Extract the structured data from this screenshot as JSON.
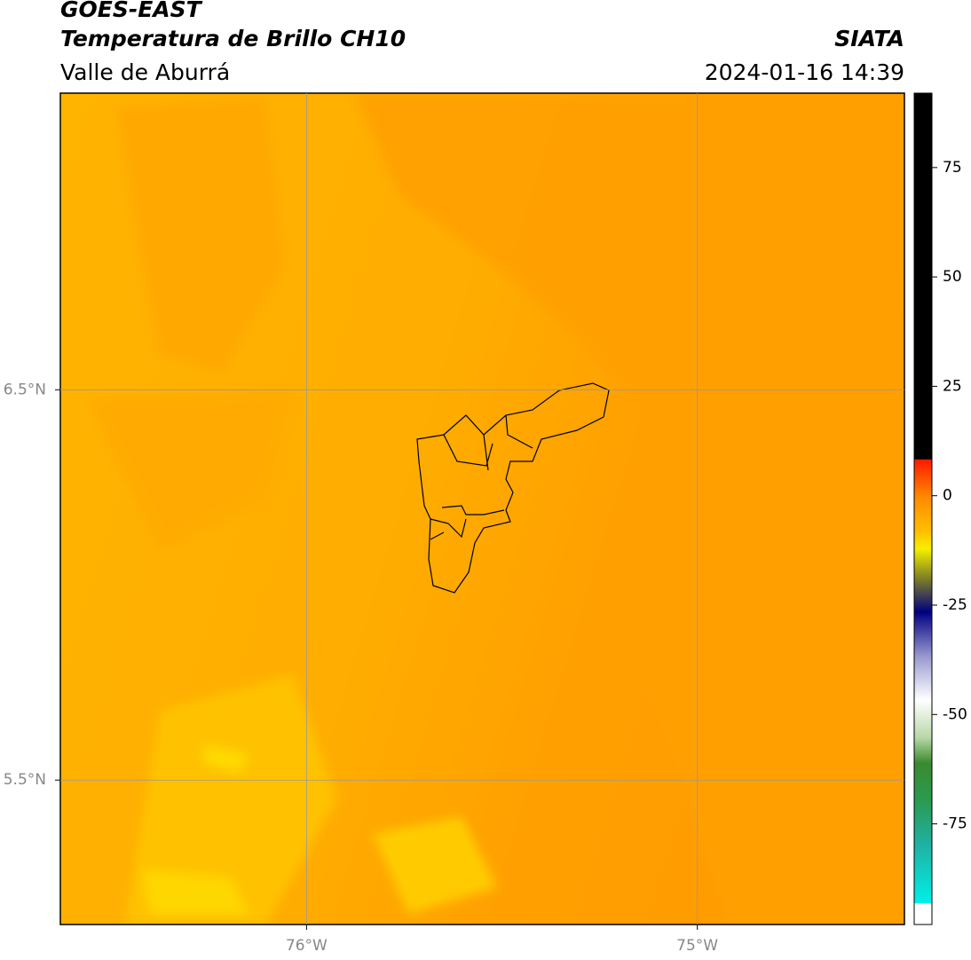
{
  "header": {
    "title": "GOES-EAST",
    "subtitle": "Temperatura de Brillo CH10",
    "region": "Valle de Aburrá",
    "source": "SIATA",
    "timestamp": "2024-01-16 14:39"
  },
  "map": {
    "xlim": [
      -76.63,
      -74.47
    ],
    "ylim": [
      5.13,
      7.26
    ],
    "xticks": [
      {
        "value": -76,
        "label": "76°W"
      },
      {
        "value": -75,
        "label": "75°W"
      }
    ],
    "yticks": [
      {
        "value": 6.5,
        "label": "6.5°N"
      },
      {
        "value": 5.5,
        "label": "5.5°N"
      }
    ],
    "grid": true
  },
  "colorbar": {
    "lim": [
      -98,
      92
    ],
    "ticks": [
      75,
      50,
      25,
      0,
      -25,
      -50,
      -75
    ]
  }
}
